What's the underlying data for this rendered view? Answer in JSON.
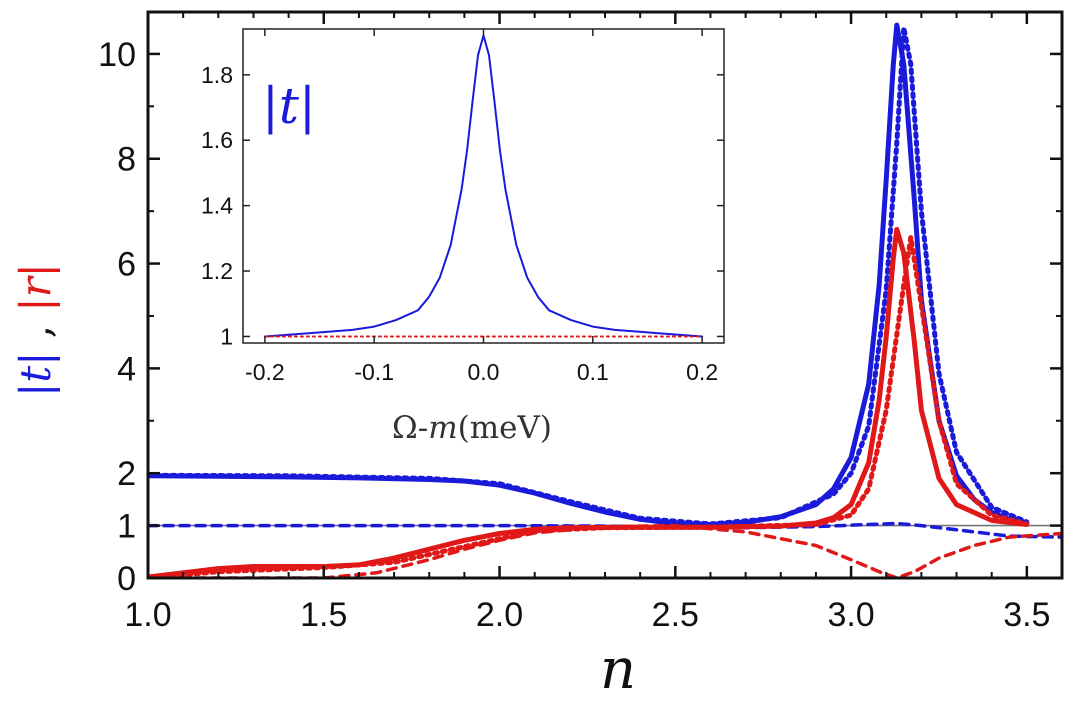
{
  "chart_data": [
    {
      "type": "line",
      "xlabel": "n",
      "ylabel_parts": [
        "|",
        "t",
        "|",
        " , ",
        "|",
        "r",
        "|"
      ],
      "xlim": [
        1.0,
        3.6
      ],
      "ylim": [
        0,
        10.8
      ],
      "xticks": [
        1.0,
        1.5,
        2.0,
        2.5,
        3.0,
        3.5
      ],
      "xtick_labels": [
        "1.0",
        "1.5",
        "2.0",
        "2.5",
        "3.0",
        "3.5"
      ],
      "yticks": [
        0,
        1,
        2,
        4,
        6,
        8,
        10
      ],
      "ytick_labels": [
        "0",
        "1",
        "2",
        "4",
        "6",
        "8",
        "10"
      ],
      "reference_line_y": 1,
      "colors": {
        "t": "#1a1adb",
        "r": "#e01818",
        "reference": "#777777"
      },
      "series": [
        {
          "key": "t_solid",
          "quantity": "t",
          "style": "solid",
          "x": [
            1.0,
            1.2,
            1.4,
            1.6,
            1.8,
            1.9,
            2.0,
            2.1,
            2.2,
            2.3,
            2.4,
            2.5,
            2.6,
            2.7,
            2.8,
            2.9,
            2.95,
            3.0,
            3.05,
            3.08,
            3.1,
            3.12,
            3.13,
            3.15,
            3.18,
            3.2,
            3.25,
            3.3,
            3.35,
            3.4,
            3.45,
            3.5
          ],
          "y": [
            1.95,
            1.94,
            1.93,
            1.91,
            1.88,
            1.85,
            1.77,
            1.62,
            1.43,
            1.26,
            1.12,
            1.04,
            1.02,
            1.06,
            1.17,
            1.4,
            1.7,
            2.3,
            3.7,
            5.6,
            7.6,
            9.8,
            10.55,
            9.8,
            7.2,
            5.3,
            3.0,
            1.95,
            1.5,
            1.25,
            1.12,
            1.05
          ]
        },
        {
          "key": "t_dotted",
          "quantity": "t",
          "style": "dotted",
          "x": [
            1.0,
            1.4,
            1.8,
            2.0,
            2.2,
            2.4,
            2.6,
            2.8,
            2.95,
            3.0,
            3.05,
            3.1,
            3.13,
            3.15,
            3.17,
            3.2,
            3.25,
            3.3,
            3.4,
            3.5
          ],
          "y": [
            1.96,
            1.95,
            1.9,
            1.8,
            1.46,
            1.14,
            1.03,
            1.15,
            1.6,
            2.0,
            2.9,
            5.5,
            8.3,
            10.5,
            9.8,
            7.0,
            3.9,
            2.4,
            1.35,
            1.07
          ]
        },
        {
          "key": "t_dashed",
          "quantity": "t",
          "style": "dashed",
          "x": [
            1.0,
            1.5,
            2.0,
            2.3,
            2.5,
            2.7,
            2.9,
            3.05,
            3.13,
            3.2,
            3.3,
            3.45,
            3.6
          ],
          "y": [
            1.0,
            1.0,
            1.0,
            0.99,
            0.97,
            0.96,
            0.98,
            1.02,
            1.04,
            1.0,
            0.92,
            0.8,
            0.78
          ]
        },
        {
          "key": "r_solid",
          "quantity": "r",
          "style": "solid",
          "x": [
            1.0,
            1.1,
            1.2,
            1.3,
            1.5,
            1.6,
            1.7,
            1.8,
            1.9,
            2.0,
            2.1,
            2.2,
            2.4,
            2.6,
            2.8,
            2.9,
            2.95,
            3.0,
            3.05,
            3.08,
            3.1,
            3.12,
            3.13,
            3.15,
            3.18,
            3.2,
            3.25,
            3.3,
            3.4,
            3.5
          ],
          "y": [
            0.02,
            0.1,
            0.18,
            0.22,
            0.22,
            0.25,
            0.38,
            0.55,
            0.72,
            0.85,
            0.93,
            0.96,
            0.97,
            0.97,
            0.99,
            1.05,
            1.15,
            1.4,
            2.2,
            3.4,
            4.6,
            6.1,
            6.65,
            6.2,
            4.5,
            3.2,
            1.9,
            1.4,
            1.1,
            1.02
          ]
        },
        {
          "key": "r_dotted",
          "quantity": "r",
          "style": "dotted",
          "x": [
            1.0,
            1.2,
            1.5,
            1.7,
            1.9,
            2.1,
            2.3,
            2.6,
            2.9,
            3.0,
            3.05,
            3.1,
            3.15,
            3.17,
            3.2,
            3.25,
            3.3,
            3.4,
            3.5
          ],
          "y": [
            0.0,
            0.12,
            0.2,
            0.3,
            0.6,
            0.9,
            0.96,
            0.97,
            1.02,
            1.2,
            1.7,
            3.2,
            5.6,
            6.5,
            5.2,
            3.0,
            1.8,
            1.2,
            1.03
          ]
        },
        {
          "key": "r_dashed",
          "quantity": "r",
          "style": "dashed",
          "x": [
            1.0,
            1.3,
            1.5,
            1.65,
            1.8,
            1.9,
            2.0,
            2.1,
            2.3,
            2.5,
            2.7,
            2.9,
            3.0,
            3.08,
            3.13,
            3.18,
            3.25,
            3.35,
            3.45,
            3.6
          ],
          "y": [
            0.0,
            0.0,
            0.0,
            0.1,
            0.35,
            0.55,
            0.72,
            0.86,
            0.98,
            1.0,
            0.88,
            0.62,
            0.35,
            0.12,
            0.0,
            0.12,
            0.38,
            0.62,
            0.78,
            0.85
          ]
        }
      ]
    },
    {
      "type": "line",
      "title_parts": [
        "|",
        "t",
        "|"
      ],
      "xlabel_prefix": "Ω-",
      "xlabel_var": "m",
      "xlabel_suffix": "(meV)",
      "xlim": [
        -0.22,
        0.22
      ],
      "ylim": [
        0.98,
        1.94
      ],
      "xticks": [
        -0.2,
        -0.1,
        0.0,
        0.1,
        0.2
      ],
      "xtick_labels": [
        "-0.2",
        "-0.1",
        "0.0",
        "0.1",
        "0.2"
      ],
      "yticks": [
        1.0,
        1.2,
        1.4,
        1.6,
        1.8
      ],
      "ytick_labels": [
        "1",
        "1.2",
        "1.4",
        "1.6",
        "1.8"
      ],
      "series": [
        {
          "key": "inset_t",
          "quantity": "t",
          "style": "solid",
          "x": [
            -0.2,
            -0.16,
            -0.12,
            -0.1,
            -0.08,
            -0.06,
            -0.05,
            -0.04,
            -0.03,
            -0.02,
            -0.015,
            -0.01,
            -0.005,
            0.0,
            0.005,
            0.01,
            0.015,
            0.02,
            0.03,
            0.04,
            0.05,
            0.06,
            0.08,
            0.1,
            0.12,
            0.16,
            0.2
          ],
          "y": [
            1.0,
            1.01,
            1.02,
            1.03,
            1.05,
            1.08,
            1.12,
            1.18,
            1.28,
            1.45,
            1.57,
            1.72,
            1.86,
            1.92,
            1.86,
            1.72,
            1.57,
            1.45,
            1.28,
            1.18,
            1.12,
            1.08,
            1.05,
            1.03,
            1.02,
            1.01,
            1.0
          ]
        },
        {
          "key": "inset_r",
          "quantity": "r",
          "style": "dotted",
          "x": [
            -0.2,
            0.2
          ],
          "y": [
            1.0,
            1.0
          ]
        }
      ]
    }
  ]
}
